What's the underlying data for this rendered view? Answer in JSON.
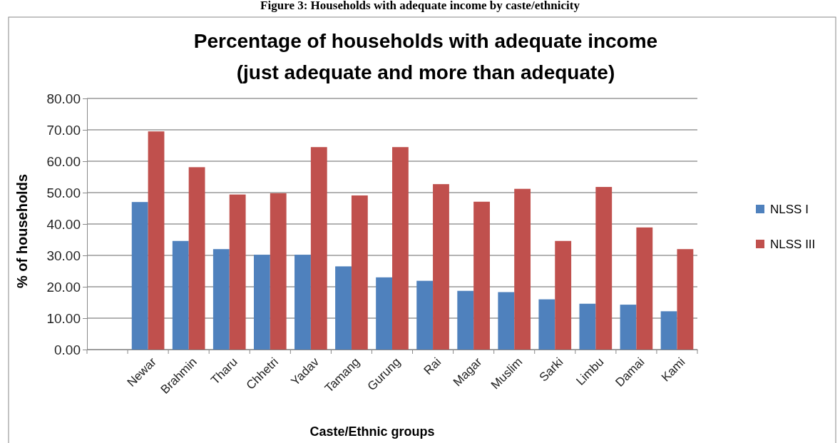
{
  "chart_data": {
    "type": "bar",
    "title": "Percentage of households with adequate income\n(just adequate and more than adequate)",
    "annotations": [
      "Figure 3: Households with adequate income by caste/ethnicity"
    ],
    "xlabel": "Caste/Ethnic groups",
    "ylabel": "% of households",
    "categories": [
      null,
      "Newar",
      "Brahmin",
      "Tharu",
      "Chhetri",
      "Yadav",
      "Tamang",
      "Gurung",
      "Rai",
      "Magar",
      "Muslim",
      "Sarki",
      "Limbu",
      "Damai",
      "Kami"
    ],
    "series": [
      {
        "name": "NLSS I",
        "color": "#4f81bd",
        "values": [
          null,
          47.0,
          34.6,
          32.0,
          30.2,
          30.2,
          26.5,
          23.0,
          21.9,
          18.7,
          18.3,
          16.0,
          14.6,
          14.3,
          12.2
        ]
      },
      {
        "name": "NLSS III",
        "color": "#c0504d",
        "values": [
          null,
          69.5,
          58.1,
          49.4,
          49.8,
          64.5,
          49.1,
          64.5,
          52.7,
          47.1,
          51.2,
          34.6,
          51.8,
          38.9,
          32.0
        ]
      }
    ],
    "ylim": [
      0,
      80
    ],
    "yticks": [
      {
        "value": 0,
        "label": "0.00"
      },
      {
        "value": 10,
        "label": "10.00"
      },
      {
        "value": 20,
        "label": "20.00"
      },
      {
        "value": 30,
        "label": "30.00"
      },
      {
        "value": 40,
        "label": "40.00"
      },
      {
        "value": 50,
        "label": "50.00"
      },
      {
        "value": 60,
        "label": "60.00"
      },
      {
        "value": 70,
        "label": "70.00"
      },
      {
        "value": 80,
        "label": "80.00"
      }
    ],
    "grid": "y",
    "legend": "right"
  }
}
